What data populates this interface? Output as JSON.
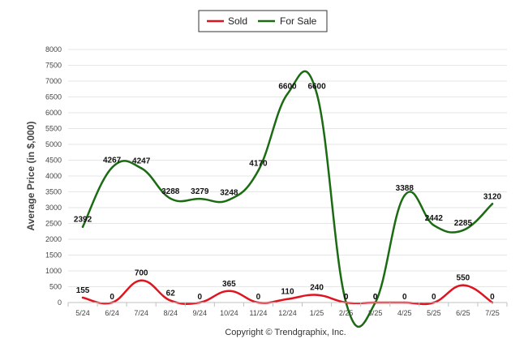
{
  "chart_data": {
    "type": "line",
    "title": "",
    "xlabel": "",
    "ylabel": "Average Price (in $,000)",
    "categories": [
      "5/24",
      "6/24",
      "7/24",
      "8/24",
      "9/24",
      "10/24",
      "11/24",
      "12/24",
      "1/25",
      "2/25",
      "3/25",
      "4/25",
      "5/25",
      "6/25",
      "7/25"
    ],
    "ylim": [
      0,
      8000
    ],
    "yticks": [
      "0",
      "500",
      "1000",
      "1500",
      "2000",
      "2500",
      "3000",
      "3500",
      "4000",
      "4500",
      "5000",
      "5500",
      "6000",
      "6500",
      "7000",
      "7500",
      "8000"
    ],
    "grid": true,
    "legend_position": "top-center",
    "series": [
      {
        "name": "Sold",
        "color": "#e0141e",
        "values": [
          155,
          0,
          700,
          62,
          0,
          365,
          0,
          110,
          240,
          0,
          0,
          0,
          0,
          550,
          0
        ],
        "labels": [
          "155",
          "0",
          "700",
          "62",
          "0",
          "365",
          "0",
          "110",
          "240",
          "0",
          "0",
          "0",
          "0",
          "550",
          "0"
        ]
      },
      {
        "name": "For Sale",
        "color": "#1a6b12",
        "values": [
          2392,
          4267,
          4247,
          3288,
          3279,
          3248,
          4170,
          6600,
          6600,
          0,
          0,
          3388,
          2442,
          2285,
          3120
        ],
        "labels": [
          "2392",
          "4267",
          "4247",
          "3288",
          "3279",
          "3248",
          "4170",
          "6600",
          "6600",
          "0",
          "0",
          "3388",
          "2442",
          "2285",
          "3120"
        ]
      }
    ]
  },
  "footer": "Copyright © Trendgraphix, Inc."
}
